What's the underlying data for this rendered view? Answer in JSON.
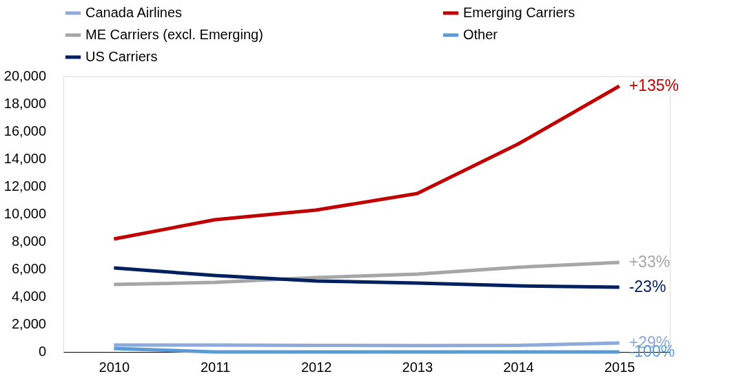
{
  "chart_data": {
    "type": "line",
    "categories": [
      "2010",
      "2011",
      "2012",
      "2013",
      "2014",
      "2015"
    ],
    "series": [
      {
        "name": "Canada Airlines",
        "color": "#8eaadb",
        "values": [
          500,
          500,
          480,
          460,
          480,
          650
        ]
      },
      {
        "name": "Emerging Carriers",
        "color": "#c00000",
        "values": [
          8200,
          9600,
          10300,
          11500,
          15100,
          19300
        ]
      },
      {
        "name": "ME Carriers (excl. Emerging)",
        "color": "#a6a6a6",
        "values": [
          4900,
          5050,
          5400,
          5650,
          6150,
          6500
        ]
      },
      {
        "name": "Other",
        "color": "#5b9bd5",
        "values": [
          250,
          0,
          0,
          0,
          0,
          0
        ]
      },
      {
        "name": "US Carriers",
        "color": "#002060",
        "values": [
          6100,
          5550,
          5150,
          5000,
          4800,
          4700
        ]
      }
    ],
    "annotations": [
      {
        "text": "+29%",
        "x": "2015",
        "y": 650
      },
      {
        "text": "+135%",
        "x": "2015",
        "y": 19300
      },
      {
        "text": "+33%",
        "x": "2015",
        "y": 6500
      },
      {
        "text": "-100%",
        "x": "2015",
        "y": 0
      },
      {
        "text": "-23%",
        "x": "2015",
        "y": 4700
      }
    ],
    "ylim": [
      0,
      20000
    ],
    "yticks": [
      0,
      {
        "value": 2000,
        "label": "2,000"
      },
      {
        "value": 4000,
        "label": "4,000"
      },
      {
        "value": 6000,
        "label": "6,000"
      },
      {
        "value": 8000,
        "label": "8,000"
      },
      {
        "value": 10000,
        "label": "10,000"
      },
      {
        "value": 12000,
        "label": "12,000"
      },
      {
        "value": 14000,
        "label": "14,000"
      },
      {
        "value": 16000,
        "label": "16,000"
      },
      {
        "value": 18000,
        "label": "18,000"
      },
      {
        "value": 20000,
        "label": "20,000"
      }
    ],
    "grid": false,
    "legend": "top",
    "marker": "none",
    "line_style": "solid"
  }
}
